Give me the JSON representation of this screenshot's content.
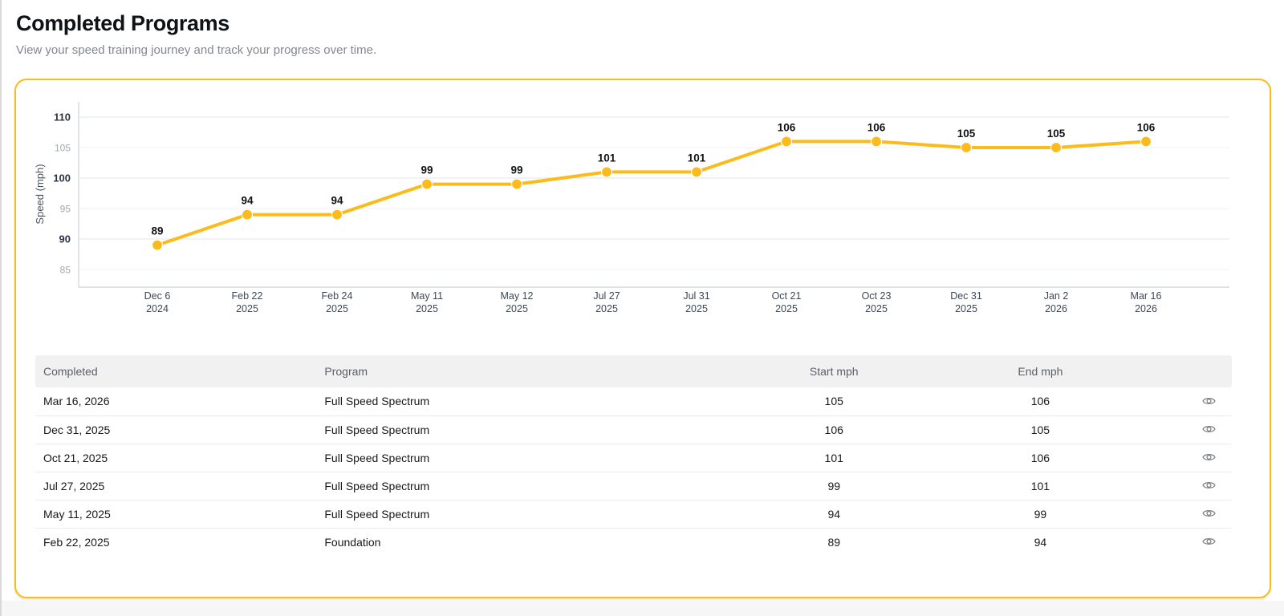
{
  "page": {
    "title": "Completed Programs",
    "subtitle": "View your speed training journey and track your progress over time."
  },
  "colors": {
    "accent": "#fbbb1a",
    "card_border": "#fbbb1a",
    "point_fill": "#fbbb1a",
    "grid_major": "#e2e5e9",
    "grid_minor": "#f0f1f4",
    "axis_line": "#d6dade",
    "tick_dark": "#2b3440",
    "tick_light": "#a2a8b0",
    "data_label": "#101114",
    "eye_icon": "#7f8287"
  },
  "chart_data": {
    "type": "line",
    "title": "",
    "xlabel": "",
    "ylabel": "Speed (mph)",
    "ylim": [
      82,
      112.5
    ],
    "yticks": [
      110,
      105,
      100,
      95,
      90,
      85
    ],
    "grid": true,
    "legend": "none",
    "point_labels_shown": true,
    "categories": [
      [
        "Dec 6",
        "2024"
      ],
      [
        "Feb 22",
        "2025"
      ],
      [
        "Feb 24",
        "2025"
      ],
      [
        "May 11",
        "2025"
      ],
      [
        "May 12",
        "2025"
      ],
      [
        "Jul 27",
        "2025"
      ],
      [
        "Jul 31",
        "2025"
      ],
      [
        "Oct 21",
        "2025"
      ],
      [
        "Oct 23",
        "2025"
      ],
      [
        "Dec 31",
        "2025"
      ],
      [
        "Jan 2",
        "2026"
      ],
      [
        "Mar 16",
        "2026"
      ]
    ],
    "values": [
      89,
      94,
      94,
      99,
      99,
      101,
      101,
      106,
      106,
      105,
      105,
      106
    ]
  },
  "table": {
    "columns": {
      "completed": "Completed",
      "program": "Program",
      "start_mph": "Start mph",
      "end_mph": "End mph",
      "actions": ""
    },
    "actions_icon": "eye-icon",
    "rows": [
      {
        "completed": "Mar 16, 2026",
        "program": "Full Speed Spectrum",
        "start_mph": "105",
        "end_mph": "106"
      },
      {
        "completed": "Dec 31, 2025",
        "program": "Full Speed Spectrum",
        "start_mph": "106",
        "end_mph": "105"
      },
      {
        "completed": "Oct 21, 2025",
        "program": "Full Speed Spectrum",
        "start_mph": "101",
        "end_mph": "106"
      },
      {
        "completed": "Jul 27, 2025",
        "program": "Full Speed Spectrum",
        "start_mph": "99",
        "end_mph": "101"
      },
      {
        "completed": "May 11, 2025",
        "program": "Full Speed Spectrum",
        "start_mph": "94",
        "end_mph": "99"
      },
      {
        "completed": "Feb 22, 2025",
        "program": "Foundation",
        "start_mph": "89",
        "end_mph": "94"
      }
    ]
  }
}
